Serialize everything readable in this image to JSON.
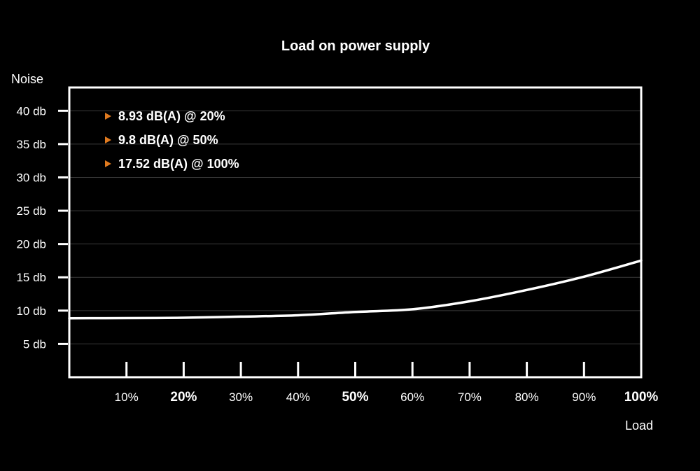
{
  "chart_data": {
    "type": "line",
    "title": "Load on power supply",
    "xlabel": "Load",
    "ylabel": "Noise",
    "x": [
      0,
      10,
      20,
      30,
      40,
      50,
      60,
      70,
      80,
      90,
      100
    ],
    "x_tick_labels": [
      "10%",
      "20%",
      "30%",
      "40%",
      "50%",
      "60%",
      "70%",
      "80%",
      "90%",
      "100%"
    ],
    "x_tick_values": [
      10,
      20,
      30,
      40,
      50,
      60,
      70,
      80,
      90,
      100
    ],
    "x_tick_bold": [
      false,
      true,
      false,
      false,
      true,
      false,
      false,
      false,
      false,
      true
    ],
    "y_tick_labels": [
      "5 db",
      "10 db",
      "15 db",
      "20 db",
      "25 db",
      "30 db",
      "35 db",
      "40 db"
    ],
    "y_tick_values": [
      5,
      10,
      15,
      20,
      25,
      30,
      35,
      40
    ],
    "xlim": [
      0,
      100
    ],
    "ylim": [
      0,
      43.5
    ],
    "grid": true,
    "series": [
      {
        "values": [
          8.85,
          8.88,
          8.93,
          9.1,
          9.3,
          9.8,
          10.2,
          11.4,
          13.1,
          15.1,
          17.52
        ],
        "color": "#ffffff"
      }
    ],
    "annotations": [
      {
        "text": "8.93 dB(A) @ 20%",
        "marker_color": "#e07a1f"
      },
      {
        "text": "9.8 dB(A) @ 50%",
        "marker_color": "#e07a1f"
      },
      {
        "text": "17.52 dB(A) @ 100%",
        "marker_color": "#e07a1f"
      }
    ]
  }
}
